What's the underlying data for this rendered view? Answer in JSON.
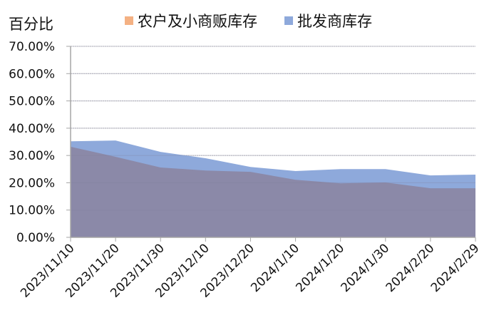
{
  "chart_data": {
    "type": "area",
    "title": "",
    "ylabel": "百分比",
    "xlabel": "",
    "ylim": [
      0,
      70
    ],
    "yticks": [
      "0.00%",
      "10.00%",
      "20.00%",
      "30.00%",
      "40.00%",
      "50.00%",
      "60.00%",
      "70.00%"
    ],
    "grid": true,
    "legend_position": "top",
    "categories": [
      "2023/11/10",
      "2023/11/20",
      "2023/11/30",
      "2023/12/10",
      "2023/12/20",
      "2024/1/10",
      "2024/1/20",
      "2024/1/30",
      "2024/2/20",
      "2024/2/29"
    ],
    "series": [
      {
        "name": "农户及小商贩库存",
        "color": "#F4B183",
        "values": [
          33.2,
          29.5,
          25.6,
          24.5,
          24.0,
          21.1,
          19.8,
          20.1,
          18.0,
          18.0
        ]
      },
      {
        "name": "批发商库存",
        "color": "#8EA9DB",
        "values": [
          35.2,
          35.5,
          31.3,
          29.0,
          25.8,
          24.3,
          25.0,
          25.0,
          22.7,
          23.0
        ]
      }
    ]
  },
  "axis": {
    "y_title": "百分比"
  },
  "legend": {
    "items": [
      {
        "label": "农户及小商贩库存",
        "color": "#F4B183"
      },
      {
        "label": "批发商库存",
        "color": "#8EA9DB"
      }
    ]
  },
  "colors": {
    "overlap": "#8B89A8",
    "grid": "#BFBFBF",
    "axis": "#A6A6A6"
  }
}
